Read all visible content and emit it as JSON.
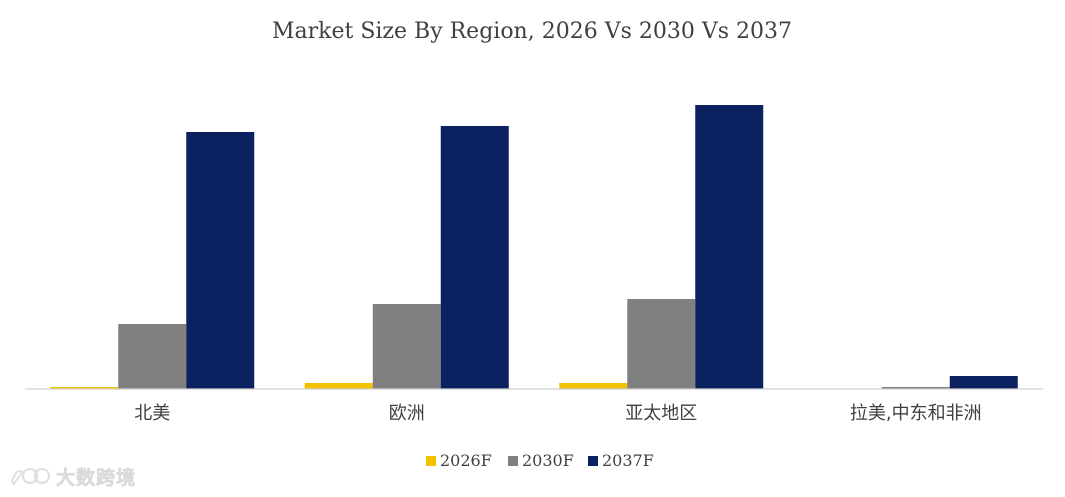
{
  "chart_data": {
    "type": "bar",
    "title": "Market Size By Region, 2026 Vs 2030 Vs 2037",
    "categories": [
      "北美",
      "欧洲",
      "亚太地区",
      "拉美,中东和非洲"
    ],
    "series": [
      {
        "name": "2026F",
        "color": "#F2C200",
        "values": [
          2,
          6,
          6,
          0
        ]
      },
      {
        "name": "2030F",
        "color": "#808080",
        "values": [
          65,
          85,
          90,
          2
        ]
      },
      {
        "name": "2037F",
        "color": "#0C2260",
        "values": [
          257,
          263,
          284,
          13
        ]
      }
    ],
    "ylim": [
      0,
      300
    ],
    "xlabel": "",
    "ylabel": "",
    "legend_position": "bottom",
    "grid": false
  },
  "watermark": {
    "text": "大数跨境"
  }
}
